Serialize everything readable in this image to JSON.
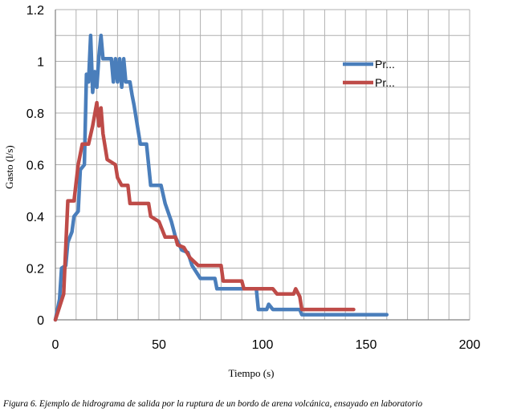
{
  "chart_data": {
    "type": "line",
    "title": "",
    "xlabel": "Tiempo (s)",
    "ylabel": "Gasto (l/s)",
    "xlim": [
      0,
      200
    ],
    "ylim": [
      0,
      1.2
    ],
    "xticks": [
      "0",
      "50",
      "100",
      "150",
      "200"
    ],
    "yticks": [
      "0",
      "0.2",
      "0.4",
      "0.6",
      "0.8",
      "1",
      "1.2"
    ],
    "grid": true,
    "legend_position": "top-right",
    "series": [
      {
        "name": "Pr...",
        "color": "#4a7ebb",
        "points": [
          [
            0,
            0
          ],
          [
            2,
            0.08
          ],
          [
            3,
            0.2
          ],
          [
            5,
            0.21
          ],
          [
            6,
            0.3
          ],
          [
            8,
            0.34
          ],
          [
            9,
            0.4
          ],
          [
            11,
            0.42
          ],
          [
            12,
            0.58
          ],
          [
            14,
            0.6
          ],
          [
            15,
            0.95
          ],
          [
            16,
            0.92
          ],
          [
            17,
            1.1
          ],
          [
            18,
            0.88
          ],
          [
            19,
            0.96
          ],
          [
            20,
            0.9
          ],
          [
            21,
            1.02
          ],
          [
            22,
            1.1
          ],
          [
            23,
            1.01
          ],
          [
            27,
            1.01
          ],
          [
            28,
            0.92
          ],
          [
            29,
            1.01
          ],
          [
            30,
            0.92
          ],
          [
            31,
            1.01
          ],
          [
            32,
            0.9
          ],
          [
            33,
            1.01
          ],
          [
            34,
            0.92
          ],
          [
            36,
            0.92
          ],
          [
            37,
            0.87
          ],
          [
            38,
            0.83
          ],
          [
            41,
            0.68
          ],
          [
            44,
            0.68
          ],
          [
            46,
            0.52
          ],
          [
            51,
            0.52
          ],
          [
            53,
            0.45
          ],
          [
            56,
            0.38
          ],
          [
            58,
            0.32
          ],
          [
            61,
            0.27
          ],
          [
            64,
            0.26
          ],
          [
            66,
            0.21
          ],
          [
            70,
            0.16
          ],
          [
            77,
            0.16
          ],
          [
            78,
            0.12
          ],
          [
            97,
            0.12
          ],
          [
            98,
            0.04
          ],
          [
            102,
            0.04
          ],
          [
            103,
            0.06
          ],
          [
            105,
            0.04
          ],
          [
            118,
            0.04
          ],
          [
            119,
            0.02
          ],
          [
            160,
            0.02
          ]
        ]
      },
      {
        "name": "Pr...",
        "color": "#be4b48",
        "points": [
          [
            0,
            0
          ],
          [
            4,
            0.1
          ],
          [
            6,
            0.46
          ],
          [
            9,
            0.46
          ],
          [
            11,
            0.6
          ],
          [
            13,
            0.68
          ],
          [
            16,
            0.68
          ],
          [
            18,
            0.75
          ],
          [
            20,
            0.84
          ],
          [
            21,
            0.75
          ],
          [
            22,
            0.82
          ],
          [
            23,
            0.72
          ],
          [
            25,
            0.62
          ],
          [
            29,
            0.6
          ],
          [
            30,
            0.55
          ],
          [
            32,
            0.52
          ],
          [
            35,
            0.52
          ],
          [
            36,
            0.45
          ],
          [
            45,
            0.45
          ],
          [
            46,
            0.4
          ],
          [
            50,
            0.38
          ],
          [
            53,
            0.32
          ],
          [
            58,
            0.32
          ],
          [
            59,
            0.29
          ],
          [
            62,
            0.28
          ],
          [
            65,
            0.24
          ],
          [
            69,
            0.21
          ],
          [
            80,
            0.21
          ],
          [
            81,
            0.15
          ],
          [
            90,
            0.15
          ],
          [
            91,
            0.12
          ],
          [
            105,
            0.12
          ],
          [
            107,
            0.1
          ],
          [
            115,
            0.1
          ],
          [
            116,
            0.12
          ],
          [
            118,
            0.09
          ],
          [
            119,
            0.04
          ],
          [
            144,
            0.04
          ]
        ]
      }
    ]
  },
  "caption": "Figura 6. Ejemplo de hidrograma de salida por la ruptura de un bordo de arena volcánica, ensayado en laboratorio"
}
